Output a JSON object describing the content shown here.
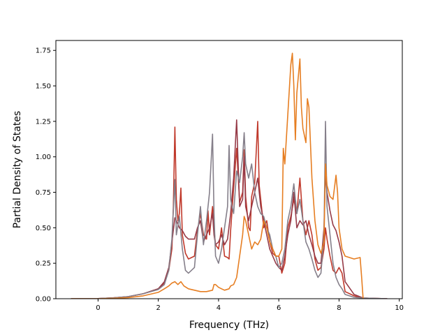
{
  "chart_data": {
    "type": "line",
    "title": "",
    "xlabel": "Frequency (THz)",
    "ylabel": "Partial Density of States",
    "xlim": [
      -1.4,
      10.1
    ],
    "ylim": [
      0,
      1.82
    ],
    "xticks": [
      0,
      2,
      4,
      6,
      8,
      10
    ],
    "xtick_labels": [
      "0",
      "2",
      "4",
      "6",
      "8",
      "10"
    ],
    "yticks": [
      0,
      0.25,
      0.5,
      0.75,
      1.0,
      1.25,
      1.5,
      1.75
    ],
    "ytick_labels": [
      "0.00",
      "0.25",
      "0.50",
      "0.75",
      "1.00",
      "1.25",
      "1.50",
      "1.75"
    ],
    "grid": false,
    "legend": "none",
    "series": [
      {
        "name": "red",
        "color": "#c0392b",
        "points": [
          [
            -0.9,
            0
          ],
          [
            0,
            0.001
          ],
          [
            0.5,
            0.006
          ],
          [
            1,
            0.015
          ],
          [
            1.5,
            0.035
          ],
          [
            2,
            0.07
          ],
          [
            2.2,
            0.11
          ],
          [
            2.35,
            0.2
          ],
          [
            2.45,
            0.35
          ],
          [
            2.5,
            0.65
          ],
          [
            2.55,
            1.21
          ],
          [
            2.6,
            0.7
          ],
          [
            2.65,
            0.55
          ],
          [
            2.7,
            0.6
          ],
          [
            2.75,
            0.78
          ],
          [
            2.8,
            0.45
          ],
          [
            2.9,
            0.32
          ],
          [
            3.0,
            0.28
          ],
          [
            3.2,
            0.3
          ],
          [
            3.3,
            0.48
          ],
          [
            3.4,
            0.6
          ],
          [
            3.5,
            0.45
          ],
          [
            3.6,
            0.42
          ],
          [
            3.65,
            0.62
          ],
          [
            3.7,
            0.45
          ],
          [
            3.8,
            0.65
          ],
          [
            3.85,
            0.5
          ],
          [
            3.9,
            0.38
          ],
          [
            4.0,
            0.35
          ],
          [
            4.1,
            0.5
          ],
          [
            4.2,
            0.3
          ],
          [
            4.3,
            0.29
          ],
          [
            4.35,
            0.28
          ],
          [
            4.4,
            0.48
          ],
          [
            4.5,
            0.78
          ],
          [
            4.6,
            1.06
          ],
          [
            4.7,
            0.68
          ],
          [
            4.8,
            0.75
          ],
          [
            4.85,
            1.05
          ],
          [
            4.9,
            0.72
          ],
          [
            5.0,
            0.5
          ],
          [
            5.05,
            0.48
          ],
          [
            5.1,
            0.72
          ],
          [
            5.2,
            0.82
          ],
          [
            5.3,
            1.25
          ],
          [
            5.35,
            0.8
          ],
          [
            5.4,
            0.7
          ],
          [
            5.5,
            0.5
          ],
          [
            5.6,
            0.55
          ],
          [
            5.7,
            0.4
          ],
          [
            5.8,
            0.32
          ],
          [
            5.9,
            0.3
          ],
          [
            6.0,
            0.3
          ],
          [
            6.1,
            0.18
          ],
          [
            6.2,
            0.25
          ],
          [
            6.3,
            0.5
          ],
          [
            6.4,
            0.58
          ],
          [
            6.5,
            0.7
          ],
          [
            6.6,
            0.6
          ],
          [
            6.7,
            0.85
          ],
          [
            6.8,
            0.55
          ],
          [
            6.9,
            0.45
          ],
          [
            7.0,
            0.55
          ],
          [
            7.1,
            0.45
          ],
          [
            7.2,
            0.28
          ],
          [
            7.3,
            0.2
          ],
          [
            7.4,
            0.22
          ],
          [
            7.5,
            0.35
          ],
          [
            7.55,
            0.5
          ],
          [
            7.6,
            0.42
          ],
          [
            7.7,
            0.3
          ],
          [
            7.8,
            0.2
          ],
          [
            7.9,
            0.18
          ],
          [
            8.0,
            0.22
          ],
          [
            8.1,
            0.18
          ],
          [
            8.2,
            0.05
          ],
          [
            8.5,
            0.02
          ],
          [
            8.8,
            0.005
          ],
          [
            9.6,
            0
          ]
        ]
      },
      {
        "name": "maroon",
        "color": "#963a47",
        "points": [
          [
            -0.9,
            0
          ],
          [
            0,
            0.001
          ],
          [
            0.5,
            0.006
          ],
          [
            1,
            0.015
          ],
          [
            1.5,
            0.035
          ],
          [
            2,
            0.07
          ],
          [
            2.2,
            0.12
          ],
          [
            2.35,
            0.22
          ],
          [
            2.45,
            0.4
          ],
          [
            2.55,
            0.57
          ],
          [
            2.6,
            0.55
          ],
          [
            2.7,
            0.5
          ],
          [
            2.8,
            0.48
          ],
          [
            2.9,
            0.44
          ],
          [
            3.0,
            0.42
          ],
          [
            3.2,
            0.42
          ],
          [
            3.3,
            0.5
          ],
          [
            3.4,
            0.55
          ],
          [
            3.5,
            0.4
          ],
          [
            3.6,
            0.45
          ],
          [
            3.7,
            0.5
          ],
          [
            3.8,
            0.6
          ],
          [
            3.85,
            0.45
          ],
          [
            3.9,
            0.38
          ],
          [
            4.0,
            0.4
          ],
          [
            4.1,
            0.45
          ],
          [
            4.2,
            0.38
          ],
          [
            4.3,
            0.42
          ],
          [
            4.4,
            0.6
          ],
          [
            4.5,
            0.85
          ],
          [
            4.6,
            1.26
          ],
          [
            4.7,
            0.65
          ],
          [
            4.8,
            0.7
          ],
          [
            4.85,
            1.0
          ],
          [
            4.9,
            0.65
          ],
          [
            5.0,
            0.55
          ],
          [
            5.1,
            0.65
          ],
          [
            5.2,
            0.75
          ],
          [
            5.3,
            0.85
          ],
          [
            5.4,
            0.65
          ],
          [
            5.5,
            0.55
          ],
          [
            5.6,
            0.45
          ],
          [
            5.7,
            0.35
          ],
          [
            5.8,
            0.3
          ],
          [
            5.9,
            0.25
          ],
          [
            6.0,
            0.22
          ],
          [
            6.1,
            0.2
          ],
          [
            6.2,
            0.3
          ],
          [
            6.3,
            0.45
          ],
          [
            6.4,
            0.55
          ],
          [
            6.5,
            0.75
          ],
          [
            6.6,
            0.5
          ],
          [
            6.7,
            0.55
          ],
          [
            6.8,
            0.52
          ],
          [
            6.9,
            0.55
          ],
          [
            7.0,
            0.45
          ],
          [
            7.1,
            0.38
          ],
          [
            7.2,
            0.3
          ],
          [
            7.3,
            0.25
          ],
          [
            7.4,
            0.25
          ],
          [
            7.5,
            0.5
          ],
          [
            7.55,
            0.88
          ],
          [
            7.6,
            0.75
          ],
          [
            7.7,
            0.62
          ],
          [
            7.8,
            0.52
          ],
          [
            7.9,
            0.48
          ],
          [
            8.0,
            0.4
          ],
          [
            8.1,
            0.3
          ],
          [
            8.2,
            0.12
          ],
          [
            8.5,
            0.03
          ],
          [
            8.8,
            0.005
          ],
          [
            9.6,
            0
          ]
        ]
      },
      {
        "name": "grey",
        "color": "#857f8a",
        "points": [
          [
            -0.9,
            0
          ],
          [
            0,
            0.001
          ],
          [
            0.5,
            0.006
          ],
          [
            1,
            0.015
          ],
          [
            1.5,
            0.035
          ],
          [
            2,
            0.065
          ],
          [
            2.2,
            0.1
          ],
          [
            2.35,
            0.2
          ],
          [
            2.45,
            0.42
          ],
          [
            2.55,
            0.84
          ],
          [
            2.6,
            0.45
          ],
          [
            2.7,
            0.58
          ],
          [
            2.8,
            0.35
          ],
          [
            2.9,
            0.2
          ],
          [
            3.0,
            0.18
          ],
          [
            3.2,
            0.22
          ],
          [
            3.3,
            0.45
          ],
          [
            3.4,
            0.65
          ],
          [
            3.5,
            0.38
          ],
          [
            3.6,
            0.55
          ],
          [
            3.7,
            0.75
          ],
          [
            3.8,
            1.16
          ],
          [
            3.85,
            0.6
          ],
          [
            3.9,
            0.3
          ],
          [
            4.0,
            0.25
          ],
          [
            4.1,
            0.35
          ],
          [
            4.2,
            0.5
          ],
          [
            4.3,
            0.65
          ],
          [
            4.35,
            1.08
          ],
          [
            4.4,
            0.7
          ],
          [
            4.5,
            0.6
          ],
          [
            4.6,
            0.9
          ],
          [
            4.7,
            0.82
          ],
          [
            4.8,
            1.0
          ],
          [
            4.85,
            1.17
          ],
          [
            4.9,
            0.95
          ],
          [
            5.0,
            0.85
          ],
          [
            5.1,
            0.95
          ],
          [
            5.2,
            0.75
          ],
          [
            5.3,
            0.65
          ],
          [
            5.4,
            0.6
          ],
          [
            5.5,
            0.58
          ],
          [
            5.6,
            0.5
          ],
          [
            5.7,
            0.45
          ],
          [
            5.8,
            0.35
          ],
          [
            5.9,
            0.3
          ],
          [
            6.0,
            0.22
          ],
          [
            6.1,
            0.25
          ],
          [
            6.2,
            0.35
          ],
          [
            6.3,
            0.55
          ],
          [
            6.4,
            0.65
          ],
          [
            6.5,
            0.81
          ],
          [
            6.6,
            0.6
          ],
          [
            6.7,
            0.7
          ],
          [
            6.8,
            0.55
          ],
          [
            6.9,
            0.4
          ],
          [
            7.0,
            0.35
          ],
          [
            7.1,
            0.28
          ],
          [
            7.2,
            0.2
          ],
          [
            7.3,
            0.15
          ],
          [
            7.4,
            0.18
          ],
          [
            7.5,
            0.45
          ],
          [
            7.55,
            1.25
          ],
          [
            7.6,
            0.65
          ],
          [
            7.7,
            0.45
          ],
          [
            7.8,
            0.25
          ],
          [
            7.9,
            0.15
          ],
          [
            8.0,
            0.1
          ],
          [
            8.1,
            0.07
          ],
          [
            8.2,
            0.03
          ],
          [
            8.5,
            0.01
          ],
          [
            8.8,
            0.005
          ],
          [
            9.6,
            0
          ]
        ]
      },
      {
        "name": "orange",
        "color": "#e67e22",
        "points": [
          [
            -0.9,
            0
          ],
          [
            0,
            0
          ],
          [
            0.5,
            0.003
          ],
          [
            1,
            0.008
          ],
          [
            1.5,
            0.02
          ],
          [
            2,
            0.045
          ],
          [
            2.2,
            0.07
          ],
          [
            2.35,
            0.09
          ],
          [
            2.45,
            0.11
          ],
          [
            2.55,
            0.12
          ],
          [
            2.65,
            0.1
          ],
          [
            2.75,
            0.12
          ],
          [
            2.85,
            0.09
          ],
          [
            3.0,
            0.07
          ],
          [
            3.2,
            0.06
          ],
          [
            3.4,
            0.05
          ],
          [
            3.6,
            0.05
          ],
          [
            3.8,
            0.06
          ],
          [
            3.85,
            0.1
          ],
          [
            3.9,
            0.1
          ],
          [
            4.0,
            0.08
          ],
          [
            4.1,
            0.07
          ],
          [
            4.2,
            0.06
          ],
          [
            4.35,
            0.07
          ],
          [
            4.4,
            0.09
          ],
          [
            4.5,
            0.1
          ],
          [
            4.6,
            0.15
          ],
          [
            4.7,
            0.3
          ],
          [
            4.8,
            0.45
          ],
          [
            4.85,
            0.58
          ],
          [
            4.9,
            0.55
          ],
          [
            5.0,
            0.45
          ],
          [
            5.1,
            0.35
          ],
          [
            5.2,
            0.4
          ],
          [
            5.3,
            0.38
          ],
          [
            5.4,
            0.42
          ],
          [
            5.5,
            0.55
          ],
          [
            5.6,
            0.5
          ],
          [
            5.7,
            0.4
          ],
          [
            5.8,
            0.35
          ],
          [
            5.9,
            0.3
          ],
          [
            6.0,
            0.3
          ],
          [
            6.1,
            0.35
          ],
          [
            6.15,
            1.06
          ],
          [
            6.2,
            0.95
          ],
          [
            6.3,
            1.3
          ],
          [
            6.4,
            1.65
          ],
          [
            6.45,
            1.73
          ],
          [
            6.5,
            1.5
          ],
          [
            6.55,
            1.12
          ],
          [
            6.6,
            1.45
          ],
          [
            6.7,
            1.69
          ],
          [
            6.75,
            1.35
          ],
          [
            6.8,
            1.2
          ],
          [
            6.9,
            1.1
          ],
          [
            6.95,
            1.41
          ],
          [
            7.0,
            1.35
          ],
          [
            7.1,
            0.85
          ],
          [
            7.2,
            0.55
          ],
          [
            7.3,
            0.38
          ],
          [
            7.4,
            0.32
          ],
          [
            7.5,
            0.4
          ],
          [
            7.55,
            0.95
          ],
          [
            7.6,
            0.8
          ],
          [
            7.7,
            0.72
          ],
          [
            7.8,
            0.7
          ],
          [
            7.9,
            0.87
          ],
          [
            7.95,
            0.75
          ],
          [
            8.0,
            0.5
          ],
          [
            8.1,
            0.35
          ],
          [
            8.2,
            0.3
          ],
          [
            8.5,
            0.28
          ],
          [
            8.7,
            0.29
          ],
          [
            8.75,
            0.15
          ],
          [
            8.8,
            0
          ]
        ]
      }
    ]
  }
}
